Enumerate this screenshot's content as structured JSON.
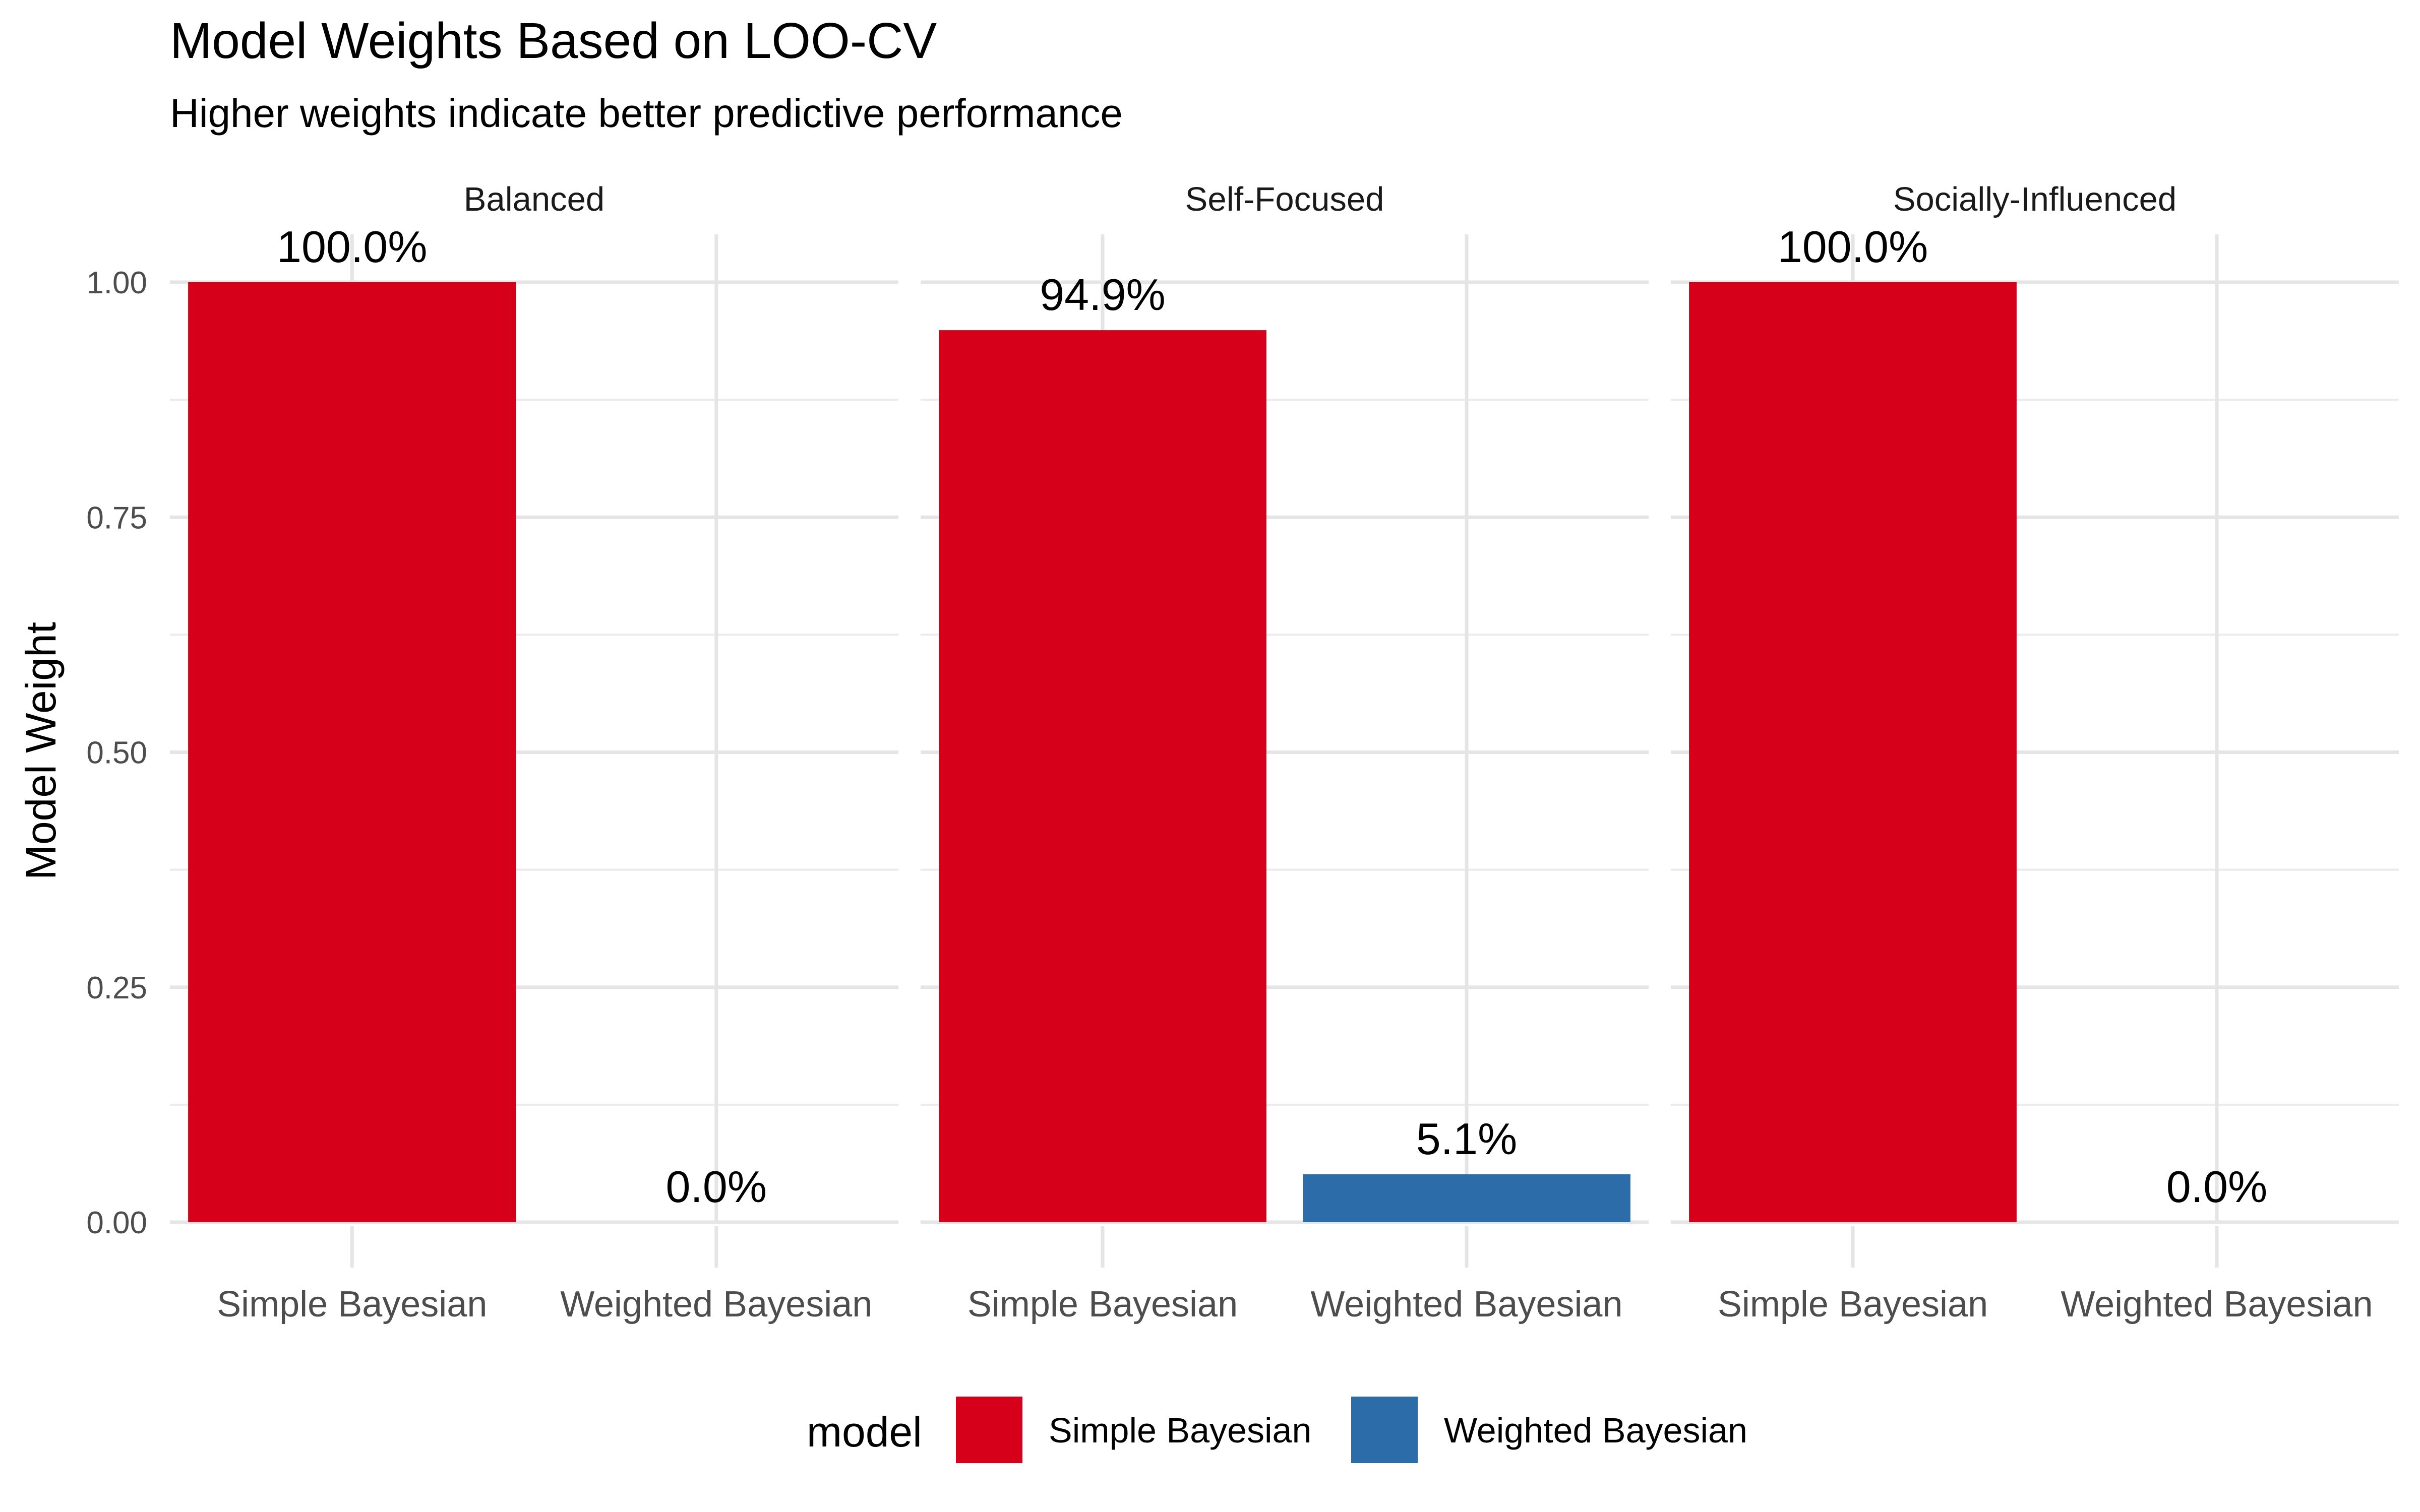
{
  "chart_data": {
    "type": "bar",
    "title": "Model Weights Based on LOO-CV",
    "subtitle": "Higher weights indicate better predictive performance",
    "xlabel": "",
    "ylabel": "Model Weight",
    "ylim": [
      0,
      1.05
    ],
    "yticks": [
      0.0,
      0.25,
      0.5,
      0.75,
      1.0
    ],
    "ytick_labels": [
      "0.00",
      "0.25",
      "0.50",
      "0.75",
      "1.00"
    ],
    "grid": true,
    "categories": [
      "Simple Bayesian",
      "Weighted Bayesian"
    ],
    "facets": [
      {
        "name": "Balanced",
        "bars": [
          {
            "category": "Simple Bayesian",
            "value": 1.0,
            "label": "100.0%"
          },
          {
            "category": "Weighted Bayesian",
            "value": 0.0,
            "label": "0.0%"
          }
        ]
      },
      {
        "name": "Self-Focused",
        "bars": [
          {
            "category": "Simple Bayesian",
            "value": 0.949,
            "label": "94.9%"
          },
          {
            "category": "Weighted Bayesian",
            "value": 0.051,
            "label": "5.1%"
          }
        ]
      },
      {
        "name": "Socially-Influenced",
        "bars": [
          {
            "category": "Simple Bayesian",
            "value": 1.0,
            "label": "100.0%"
          },
          {
            "category": "Weighted Bayesian",
            "value": 0.0,
            "label": "0.0%"
          }
        ]
      }
    ],
    "legend": {
      "title": "model",
      "position": "bottom",
      "entries": [
        {
          "name": "Simple Bayesian",
          "color": "#D7001A"
        },
        {
          "name": "Weighted Bayesian",
          "color": "#2B6CA9"
        }
      ]
    }
  }
}
